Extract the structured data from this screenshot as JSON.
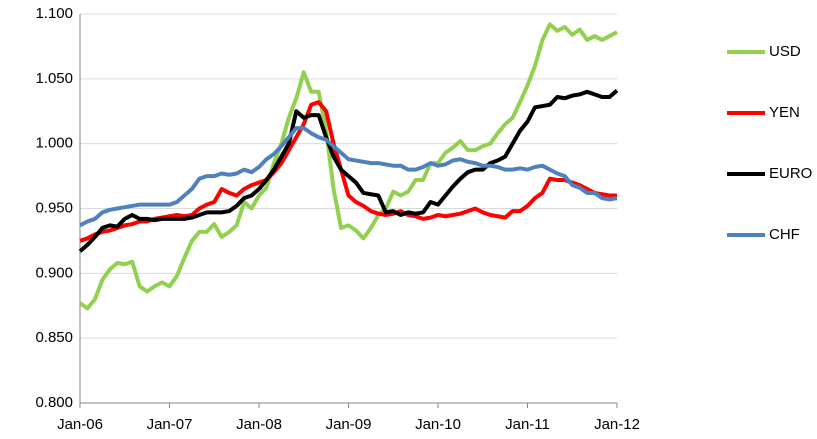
{
  "chart_data": {
    "type": "line",
    "categories": [
      "Jan-06",
      null,
      null,
      null,
      null,
      null,
      null,
      null,
      null,
      null,
      null,
      null,
      "Jan-07",
      null,
      null,
      null,
      null,
      null,
      null,
      null,
      null,
      null,
      null,
      null,
      "Jan-08",
      null,
      null,
      null,
      null,
      null,
      null,
      null,
      null,
      null,
      null,
      null,
      "Jan-09",
      null,
      null,
      null,
      null,
      null,
      null,
      null,
      null,
      null,
      null,
      null,
      "Jan-10",
      null,
      null,
      null,
      null,
      null,
      null,
      null,
      null,
      null,
      null,
      null,
      "Jan-11",
      null,
      null,
      null,
      null,
      null,
      null,
      null,
      null,
      null,
      null,
      null,
      "Jan-12"
    ],
    "series": [
      {
        "name": "USD",
        "color": "#92d050",
        "values": [
          0.877,
          0.873,
          0.88,
          0.895,
          0.903,
          0.908,
          0.907,
          0.909,
          0.89,
          0.886,
          0.89,
          0.893,
          0.89,
          0.898,
          0.912,
          0.925,
          0.932,
          0.932,
          0.938,
          0.928,
          0.932,
          0.937,
          0.955,
          0.95,
          0.96,
          0.966,
          0.985,
          1.0,
          1.02,
          1.035,
          1.055,
          1.04,
          1.04,
          1.01,
          0.965,
          0.935,
          0.937,
          0.933,
          0.927,
          0.935,
          0.945,
          0.95,
          0.963,
          0.96,
          0.963,
          0.972,
          0.972,
          0.985,
          0.985,
          0.993,
          0.997,
          1.002,
          0.995,
          0.995,
          0.998,
          1.0,
          1.008,
          1.015,
          1.02,
          1.032,
          1.045,
          1.06,
          1.08,
          1.092,
          1.087,
          1.09,
          1.084,
          1.088,
          1.08,
          1.083,
          1.08,
          1.083,
          1.086
        ]
      },
      {
        "name": "YEN",
        "color": "#ff0000",
        "values": [
          0.925,
          0.927,
          0.93,
          0.932,
          0.933,
          0.935,
          0.937,
          0.938,
          0.94,
          0.94,
          0.942,
          0.943,
          0.944,
          0.945,
          0.944,
          0.945,
          0.95,
          0.953,
          0.955,
          0.965,
          0.962,
          0.96,
          0.965,
          0.968,
          0.97,
          0.972,
          0.978,
          0.985,
          0.995,
          1.005,
          1.015,
          1.03,
          1.032,
          1.025,
          1.0,
          0.98,
          0.96,
          0.955,
          0.952,
          0.948,
          0.946,
          0.945,
          0.946,
          0.948,
          0.945,
          0.944,
          0.942,
          0.943,
          0.945,
          0.944,
          0.945,
          0.946,
          0.948,
          0.95,
          0.947,
          0.945,
          0.944,
          0.943,
          0.948,
          0.948,
          0.952,
          0.958,
          0.962,
          0.973,
          0.972,
          0.972,
          0.97,
          0.968,
          0.965,
          0.962,
          0.961,
          0.96,
          0.96
        ]
      },
      {
        "name": "EURO",
        "color": "#000000",
        "values": [
          0.917,
          0.922,
          0.928,
          0.935,
          0.937,
          0.936,
          0.942,
          0.945,
          0.942,
          0.942,
          0.941,
          0.942,
          0.942,
          0.942,
          0.942,
          0.943,
          0.945,
          0.947,
          0.947,
          0.947,
          0.948,
          0.952,
          0.958,
          0.96,
          0.965,
          0.972,
          0.98,
          0.99,
          1.0,
          1.025,
          1.02,
          1.022,
          1.022,
          1.005,
          0.99,
          0.98,
          0.975,
          0.97,
          0.962,
          0.961,
          0.96,
          0.947,
          0.948,
          0.945,
          0.947,
          0.946,
          0.947,
          0.955,
          0.953,
          0.96,
          0.967,
          0.973,
          0.978,
          0.98,
          0.98,
          0.985,
          0.987,
          0.99,
          1.0,
          1.01,
          1.017,
          1.028,
          1.029,
          1.03,
          1.036,
          1.035,
          1.037,
          1.038,
          1.04,
          1.038,
          1.036,
          1.036,
          1.041
        ]
      },
      {
        "name": "CHF",
        "color": "#4f81bd",
        "values": [
          0.937,
          0.94,
          0.942,
          0.947,
          0.949,
          0.95,
          0.951,
          0.952,
          0.953,
          0.953,
          0.953,
          0.953,
          0.953,
          0.955,
          0.96,
          0.965,
          0.973,
          0.975,
          0.975,
          0.977,
          0.976,
          0.977,
          0.98,
          0.978,
          0.982,
          0.988,
          0.992,
          0.998,
          1.005,
          1.012,
          1.012,
          1.008,
          1.005,
          1.003,
          0.998,
          0.993,
          0.988,
          0.987,
          0.986,
          0.985,
          0.985,
          0.984,
          0.983,
          0.983,
          0.98,
          0.98,
          0.982,
          0.985,
          0.983,
          0.984,
          0.987,
          0.988,
          0.986,
          0.985,
          0.983,
          0.983,
          0.982,
          0.98,
          0.98,
          0.981,
          0.98,
          0.982,
          0.983,
          0.98,
          0.977,
          0.975,
          0.968,
          0.966,
          0.962,
          0.962,
          0.958,
          0.957,
          0.958
        ]
      }
    ],
    "ylim": [
      0.8,
      1.1
    ],
    "yticks": [
      {
        "value": 0.8,
        "label": "0.800"
      },
      {
        "value": 0.85,
        "label": "0.850"
      },
      {
        "value": 0.9,
        "label": "0.900"
      },
      {
        "value": 0.95,
        "label": "0.950"
      },
      {
        "value": 1.0,
        "label": "1.000"
      },
      {
        "value": 1.05,
        "label": "1.050"
      },
      {
        "value": 1.1,
        "label": "1.100"
      }
    ],
    "grid": true,
    "legend": "right"
  }
}
